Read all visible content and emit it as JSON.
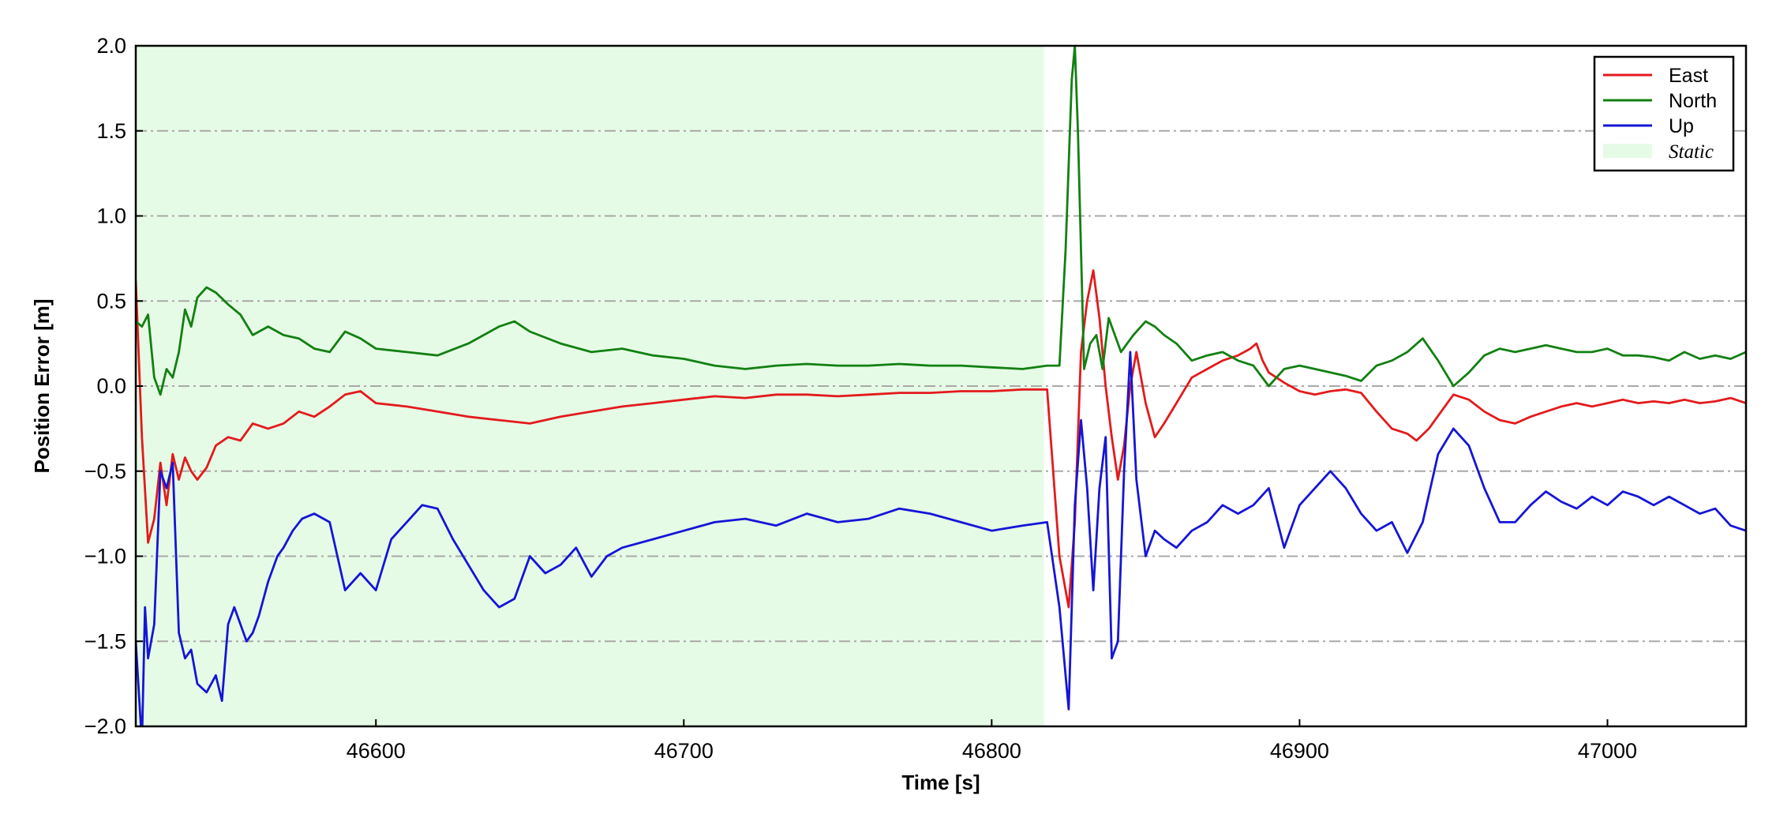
{
  "chart_data": {
    "type": "line",
    "xlabel": "Time [s]",
    "ylabel": "Position Error [m]",
    "xlim": [
      46522,
      47045
    ],
    "ylim": [
      -2.0,
      2.0
    ],
    "xticks": [
      46600,
      46700,
      46800,
      46900,
      47000
    ],
    "xtick_labels": [
      "46600",
      "46700",
      "46800",
      "46900",
      "47000"
    ],
    "yticks": [
      -2.0,
      -1.5,
      -1.0,
      -0.5,
      0.0,
      0.5,
      1.0,
      1.5,
      2.0
    ],
    "ytick_labels": [
      "−2.0",
      "−1.5",
      "−1.0",
      "−0.5",
      "0.0",
      "0.5",
      "1.0",
      "1.5",
      "2.0"
    ],
    "grid": "horizontal dash-dot",
    "legend_position": "top-right",
    "shaded_region": {
      "label": "Static",
      "x": [
        46522,
        46817
      ],
      "color": "#e6fbe6"
    },
    "series": [
      {
        "name": "East",
        "color": "#e31a1c",
        "x": [
          46522,
          46524,
          46526,
          46528,
          46530,
          46532,
          46534,
          46536,
          46538,
          46540,
          46542,
          46545,
          46548,
          46552,
          46556,
          46560,
          46565,
          46570,
          46575,
          46580,
          46585,
          46590,
          46595,
          46600,
          46610,
          46620,
          46630,
          46640,
          46650,
          46660,
          46670,
          46680,
          46690,
          46700,
          46710,
          46720,
          46730,
          46740,
          46750,
          46760,
          46770,
          46780,
          46790,
          46800,
          46810,
          46818,
          46822,
          46825,
          46827,
          46829,
          46831,
          46833,
          46835,
          46837,
          46839,
          46841,
          46843,
          46845,
          46847,
          46850,
          46853,
          46856,
          46860,
          46865,
          46870,
          46875,
          46880,
          46884,
          46886,
          46888,
          46890,
          46895,
          46900,
          46905,
          46910,
          46915,
          46920,
          46925,
          46930,
          46935,
          46938,
          46942,
          46946,
          46950,
          46955,
          46960,
          46965,
          46970,
          46975,
          46980,
          46985,
          46990,
          46995,
          47000,
          47005,
          47010,
          47015,
          47020,
          47025,
          47030,
          47035,
          47040,
          47045
        ],
        "values": [
          0.62,
          -0.3,
          -0.92,
          -0.78,
          -0.45,
          -0.7,
          -0.4,
          -0.55,
          -0.42,
          -0.5,
          -0.55,
          -0.48,
          -0.35,
          -0.3,
          -0.32,
          -0.22,
          -0.25,
          -0.22,
          -0.15,
          -0.18,
          -0.12,
          -0.05,
          -0.03,
          -0.1,
          -0.12,
          -0.15,
          -0.18,
          -0.2,
          -0.22,
          -0.18,
          -0.15,
          -0.12,
          -0.1,
          -0.08,
          -0.06,
          -0.07,
          -0.05,
          -0.05,
          -0.06,
          -0.05,
          -0.04,
          -0.04,
          -0.03,
          -0.03,
          -0.02,
          -0.02,
          -1.0,
          -1.3,
          -0.8,
          0.2,
          0.5,
          0.68,
          0.4,
          0.0,
          -0.3,
          -0.55,
          -0.35,
          0.0,
          0.2,
          -0.1,
          -0.3,
          -0.22,
          -0.1,
          0.05,
          0.1,
          0.15,
          0.18,
          0.22,
          0.25,
          0.15,
          0.08,
          0.02,
          -0.03,
          -0.05,
          -0.03,
          -0.02,
          -0.04,
          -0.15,
          -0.25,
          -0.28,
          -0.32,
          -0.25,
          -0.15,
          -0.05,
          -0.08,
          -0.15,
          -0.2,
          -0.22,
          -0.18,
          -0.15,
          -0.12,
          -0.1,
          -0.12,
          -0.1,
          -0.08,
          -0.1,
          -0.09,
          -0.1,
          -0.08,
          -0.1,
          -0.09,
          -0.07,
          -0.1
        ]
      },
      {
        "name": "North",
        "color": "#128012",
        "x": [
          46522,
          46524,
          46526,
          46528,
          46530,
          46532,
          46534,
          46536,
          46538,
          46540,
          46542,
          46545,
          46548,
          46552,
          46556,
          46560,
          46565,
          46570,
          46575,
          46580,
          46585,
          46590,
          46595,
          46600,
          46610,
          46620,
          46630,
          46640,
          46645,
          46650,
          46660,
          46670,
          46680,
          46690,
          46700,
          46710,
          46720,
          46730,
          46740,
          46750,
          46760,
          46770,
          46780,
          46790,
          46800,
          46810,
          46818,
          46822,
          46824,
          46826,
          46827,
          46828,
          46830,
          46832,
          46834,
          46836,
          46838,
          46840,
          46842,
          46844,
          46846,
          46850,
          46853,
          46856,
          46860,
          46865,
          46870,
          46875,
          46880,
          46885,
          46890,
          46895,
          46900,
          46905,
          46910,
          46915,
          46920,
          46925,
          46930,
          46935,
          46940,
          46945,
          46950,
          46955,
          46960,
          46965,
          46970,
          46975,
          46980,
          46985,
          46990,
          46995,
          47000,
          47005,
          47010,
          47015,
          47020,
          47025,
          47030,
          47035,
          47040,
          47045
        ],
        "values": [
          0.38,
          0.35,
          0.42,
          0.05,
          -0.05,
          0.1,
          0.05,
          0.2,
          0.45,
          0.35,
          0.52,
          0.58,
          0.55,
          0.48,
          0.42,
          0.3,
          0.35,
          0.3,
          0.28,
          0.22,
          0.2,
          0.32,
          0.28,
          0.22,
          0.2,
          0.18,
          0.25,
          0.35,
          0.38,
          0.32,
          0.25,
          0.2,
          0.22,
          0.18,
          0.16,
          0.12,
          0.1,
          0.12,
          0.13,
          0.12,
          0.12,
          0.13,
          0.12,
          0.12,
          0.11,
          0.1,
          0.12,
          0.12,
          0.8,
          1.8,
          2.0,
          1.5,
          0.1,
          0.25,
          0.3,
          0.1,
          0.4,
          0.3,
          0.2,
          0.25,
          0.3,
          0.38,
          0.35,
          0.3,
          0.25,
          0.15,
          0.18,
          0.2,
          0.15,
          0.12,
          0.0,
          0.1,
          0.12,
          0.1,
          0.08,
          0.06,
          0.03,
          0.12,
          0.15,
          0.2,
          0.28,
          0.15,
          0.0,
          0.08,
          0.18,
          0.22,
          0.2,
          0.22,
          0.24,
          0.22,
          0.2,
          0.2,
          0.22,
          0.18,
          0.18,
          0.17,
          0.15,
          0.2,
          0.16,
          0.18,
          0.16,
          0.2
        ]
      },
      {
        "name": "Up",
        "color": "#1515d6",
        "x": [
          46522,
          46524,
          46525,
          46526,
          46528,
          46530,
          46532,
          46534,
          46536,
          46538,
          46540,
          46542,
          46545,
          46548,
          46550,
          46552,
          46554,
          46556,
          46558,
          46560,
          46562,
          46565,
          46568,
          46570,
          46573,
          46576,
          46580,
          46585,
          46590,
          46595,
          46600,
          46605,
          46610,
          46615,
          46620,
          46625,
          46630,
          46635,
          46640,
          46645,
          46650,
          46655,
          46660,
          46665,
          46670,
          46675,
          46680,
          46690,
          46700,
          46710,
          46720,
          46730,
          46740,
          46750,
          46760,
          46770,
          46780,
          46790,
          46800,
          46810,
          46818,
          46822,
          46825,
          46827,
          46829,
          46831,
          46833,
          46835,
          46837,
          46839,
          46841,
          46843,
          46845,
          46847,
          46850,
          46853,
          46856,
          46860,
          46865,
          46870,
          46875,
          46880,
          46885,
          46890,
          46895,
          46900,
          46905,
          46910,
          46915,
          46920,
          46925,
          46930,
          46935,
          46940,
          46945,
          46950,
          46955,
          46960,
          46965,
          46970,
          46975,
          46980,
          46985,
          46990,
          46995,
          47000,
          47005,
          47010,
          47015,
          47020,
          47025,
          47030,
          47035,
          47040,
          47045
        ],
        "values": [
          -1.5,
          -2.1,
          -1.3,
          -1.6,
          -1.4,
          -0.5,
          -0.6,
          -0.45,
          -1.45,
          -1.6,
          -1.55,
          -1.75,
          -1.8,
          -1.7,
          -1.85,
          -1.4,
          -1.3,
          -1.4,
          -1.5,
          -1.45,
          -1.35,
          -1.15,
          -1.0,
          -0.95,
          -0.85,
          -0.78,
          -0.75,
          -0.8,
          -1.2,
          -1.1,
          -1.2,
          -0.9,
          -0.8,
          -0.7,
          -0.72,
          -0.9,
          -1.05,
          -1.2,
          -1.3,
          -1.25,
          -1.0,
          -1.1,
          -1.05,
          -0.95,
          -1.12,
          -1.0,
          -0.95,
          -0.9,
          -0.85,
          -0.8,
          -0.78,
          -0.82,
          -0.75,
          -0.8,
          -0.78,
          -0.72,
          -0.75,
          -0.8,
          -0.85,
          -0.82,
          -0.8,
          -1.3,
          -1.9,
          -0.7,
          -0.2,
          -0.6,
          -1.2,
          -0.6,
          -0.3,
          -1.6,
          -1.5,
          -0.5,
          0.2,
          -0.55,
          -1.0,
          -0.85,
          -0.9,
          -0.95,
          -0.85,
          -0.8,
          -0.7,
          -0.75,
          -0.7,
          -0.6,
          -0.95,
          -0.7,
          -0.6,
          -0.5,
          -0.6,
          -0.75,
          -0.85,
          -0.8,
          -0.98,
          -0.8,
          -0.4,
          -0.25,
          -0.35,
          -0.6,
          -0.8,
          -0.8,
          -0.7,
          -0.62,
          -0.68,
          -0.72,
          -0.65,
          -0.7,
          -0.62,
          -0.65,
          -0.7,
          -0.65,
          -0.7,
          -0.75,
          -0.72,
          -0.82,
          -0.85
        ]
      }
    ]
  }
}
